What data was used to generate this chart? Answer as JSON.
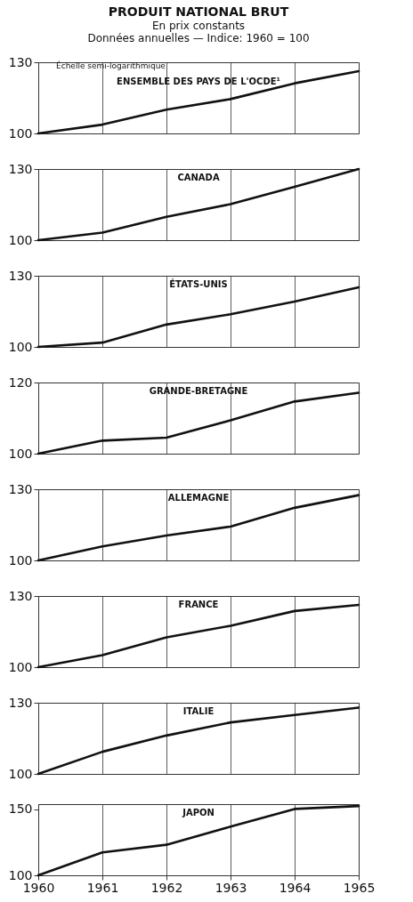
{
  "chart_data": [
    {
      "type": "line",
      "title": "PRODUIT NATIONAL BRUT",
      "subtitle": "En prix constants\nDonnées annuelles — Indice: 1960 = 100",
      "annotations": [
        "Échelle semi-logarithmique"
      ],
      "x": [
        1960,
        1961,
        1962,
        1963,
        1964,
        1965
      ],
      "xlim": [
        1960,
        1965
      ],
      "xticks": [
        1960,
        1961,
        1962,
        1963,
        1964,
        1965
      ],
      "tick_labels": "y",
      "grid": "x",
      "log": "y",
      "ylim": [
        100,
        130
      ],
      "yticks": [
        100,
        130
      ],
      "series": [
        {
          "name": "ENSEMBLE DES PAYS DE L'OCDE¹",
          "color": "#111111",
          "values": [
            100,
            103.3,
            109.2,
            113.5,
            120.3,
            125.8
          ]
        }
      ]
    },
    {
      "type": "line",
      "x": [
        1960,
        1961,
        1962,
        1963,
        1964,
        1965
      ],
      "xlim": [
        1960,
        1965
      ],
      "xticks": [
        1960,
        1961,
        1962,
        1963,
        1964,
        1965
      ],
      "tick_labels": "y",
      "grid": "x",
      "log": "y",
      "ylim": [
        100,
        130
      ],
      "yticks": [
        100,
        130
      ],
      "series": [
        {
          "name": "CANADA",
          "color": "#111111",
          "values": [
            100,
            102.8,
            109.0,
            114.2,
            121.7,
            130
          ]
        }
      ]
    },
    {
      "type": "line",
      "x": [
        1960,
        1961,
        1962,
        1963,
        1964,
        1965
      ],
      "xlim": [
        1960,
        1965
      ],
      "xticks": [
        1960,
        1961,
        1962,
        1963,
        1964,
        1965
      ],
      "tick_labels": "y",
      "grid": "x",
      "log": "y",
      "ylim": [
        100,
        130
      ],
      "yticks": [
        100,
        130
      ],
      "series": [
        {
          "name": "ÉTATS-UNIS",
          "color": "#111111",
          "values": [
            100,
            101.6,
            108.6,
            112.8,
            118.2,
            124.6
          ]
        }
      ]
    },
    {
      "type": "line",
      "x": [
        1960,
        1961,
        1962,
        1963,
        1964,
        1965
      ],
      "xlim": [
        1960,
        1965
      ],
      "xticks": [
        1960,
        1961,
        1962,
        1963,
        1964,
        1965
      ],
      "tick_labels": "y",
      "grid": "x",
      "log": "y",
      "ylim": [
        100,
        120
      ],
      "yticks": [
        100,
        120
      ],
      "series": [
        {
          "name": "GRANDE-BRETAGNE",
          "color": "#111111",
          "values": [
            100,
            103.4,
            104.2,
            108.9,
            114.3,
            116.9
          ]
        }
      ]
    },
    {
      "type": "line",
      "x": [
        1960,
        1961,
        1962,
        1963,
        1964,
        1965
      ],
      "xlim": [
        1960,
        1965
      ],
      "xticks": [
        1960,
        1961,
        1962,
        1963,
        1964,
        1965
      ],
      "tick_labels": "y",
      "grid": "x",
      "log": "y",
      "ylim": [
        100,
        130
      ],
      "yticks": [
        100,
        130
      ],
      "series": [
        {
          "name": "ALLEMAGNE",
          "color": "#111111",
          "values": [
            100,
            105.3,
            109.6,
            113.3,
            121.4,
            127.2
          ]
        }
      ]
    },
    {
      "type": "line",
      "x": [
        1960,
        1961,
        1962,
        1963,
        1964,
        1965
      ],
      "xlim": [
        1960,
        1965
      ],
      "xticks": [
        1960,
        1961,
        1962,
        1963,
        1964,
        1965
      ],
      "tick_labels": "y",
      "grid": "x",
      "log": "y",
      "ylim": [
        100,
        130
      ],
      "yticks": [
        100,
        130
      ],
      "series": [
        {
          "name": "FRANCE",
          "color": "#111111",
          "values": [
            100,
            104.5,
            111.6,
            116.5,
            123.0,
            125.8
          ]
        }
      ]
    },
    {
      "type": "line",
      "x": [
        1960,
        1961,
        1962,
        1963,
        1964,
        1965
      ],
      "xlim": [
        1960,
        1965
      ],
      "xticks": [
        1960,
        1961,
        1962,
        1963,
        1964,
        1965
      ],
      "tick_labels": "y",
      "grid": "x",
      "log": "y",
      "ylim": [
        100,
        130
      ],
      "yticks": [
        100,
        130
      ],
      "series": [
        {
          "name": "ITALIE",
          "color": "#111111",
          "values": [
            100,
            108.5,
            115.2,
            120.9,
            124.3,
            127.7
          ]
        }
      ]
    },
    {
      "type": "line",
      "x": [
        1960,
        1961,
        1962,
        1963,
        1964,
        1965
      ],
      "xlim": [
        1960,
        1965
      ],
      "xticks": [
        1960,
        1961,
        1962,
        1963,
        1964,
        1965
      ],
      "grid": "x",
      "log": "y",
      "ylim": [
        100,
        155
      ],
      "yticks": [
        100,
        150
      ],
      "series": [
        {
          "name": "JAPON",
          "color": "#111111",
          "values": [
            100,
            115.1,
            120.7,
            134.9,
            150.5,
            153.2
          ]
        }
      ]
    }
  ]
}
